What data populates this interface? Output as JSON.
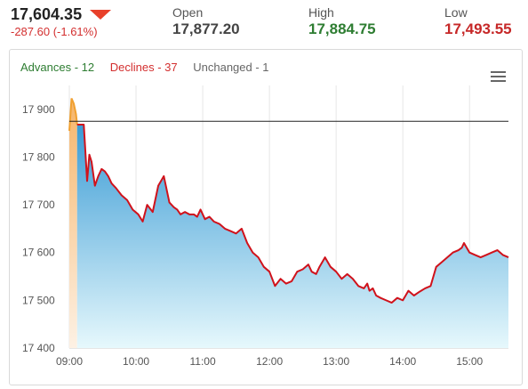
{
  "quote": {
    "last": "17,604.35",
    "change": "-287.60 (-1.61%)",
    "open_label": "Open",
    "open_value": "17,877.20",
    "high_label": "High",
    "high_value": "17,884.75",
    "low_label": "Low",
    "low_value": "17,493.55"
  },
  "breadth": {
    "advances": "Advances - 12",
    "declines": "Declines - 37",
    "unchanged": "Unchanged - 1"
  },
  "colors": {
    "down": "#d32f2f",
    "up_green": "#2e7d32",
    "line": "#d0121b",
    "preopen_line": "#f0a030",
    "fill_top": "#3a9bd5",
    "fill_bottom": "#e6f8fc",
    "prev_close_line": "#222222"
  },
  "chart_data": {
    "type": "area",
    "title": "",
    "xlabel": "",
    "ylabel": "",
    "ylim": [
      17400,
      17950
    ],
    "xlim": [
      "09:00",
      "15:35"
    ],
    "y_ticks": [
      17400,
      17500,
      17600,
      17700,
      17800,
      17900
    ],
    "y_tick_labels": [
      "17 400",
      "17 500",
      "17 600",
      "17 700",
      "17 800",
      "17 900"
    ],
    "x_ticks": [
      "09:00",
      "10:00",
      "11:00",
      "12:00",
      "13:00",
      "14:00",
      "15:00"
    ],
    "reference_line": 17875,
    "legend": "none",
    "grid": "vertical",
    "preopen_series": {
      "x": [
        "09:00",
        "09:02",
        "09:04",
        "09:06",
        "09:07"
      ],
      "values": [
        17855,
        17923,
        17912,
        17890,
        17868
      ]
    },
    "series": [
      {
        "x": [
          "09:07",
          "09:13",
          "09:16",
          "09:18",
          "09:20",
          "09:23",
          "09:26",
          "09:29",
          "09:32",
          "09:35",
          "09:38",
          "09:42",
          "09:47",
          "09:52",
          "09:57",
          "10:02",
          "10:06",
          "10:10",
          "10:15",
          "10:20",
          "10:25",
          "10:30",
          "10:34",
          "10:37",
          "10:40",
          "10:44",
          "10:48",
          "10:52",
          "10:55",
          "10:58",
          "11:02",
          "11:06",
          "11:10",
          "11:15",
          "11:20",
          "11:25",
          "11:30",
          "11:35",
          "11:40",
          "11:45",
          "11:50",
          "11:55",
          "12:00",
          "12:05",
          "12:10",
          "12:15",
          "12:20",
          "12:25",
          "12:30",
          "12:35",
          "12:38",
          "12:42",
          "12:45",
          "12:50",
          "12:55",
          "13:00",
          "13:05",
          "13:10",
          "13:15",
          "13:20",
          "13:25",
          "13:28",
          "13:30",
          "13:33",
          "13:36",
          "13:40",
          "13:45",
          "13:50",
          "13:55",
          "14:00",
          "14:05",
          "14:10",
          "14:15",
          "14:20",
          "14:25",
          "14:30",
          "14:35",
          "14:40",
          "14:45",
          "14:50",
          "14:53",
          "14:55",
          "15:00",
          "15:05",
          "15:10",
          "15:15",
          "15:20",
          "15:25",
          "15:30",
          "15:35"
        ],
        "values": [
          17868,
          17868,
          17750,
          17805,
          17790,
          17740,
          17760,
          17775,
          17770,
          17760,
          17745,
          17735,
          17720,
          17710,
          17690,
          17680,
          17665,
          17700,
          17685,
          17740,
          17760,
          17705,
          17695,
          17690,
          17680,
          17685,
          17680,
          17680,
          17675,
          17690,
          17670,
          17675,
          17665,
          17660,
          17650,
          17645,
          17640,
          17650,
          17620,
          17600,
          17590,
          17570,
          17560,
          17530,
          17545,
          17535,
          17540,
          17560,
          17565,
          17575,
          17560,
          17555,
          17570,
          17590,
          17570,
          17560,
          17545,
          17555,
          17545,
          17530,
          17525,
          17535,
          17520,
          17525,
          17510,
          17505,
          17500,
          17495,
          17505,
          17500,
          17520,
          17510,
          17518,
          17525,
          17530,
          17570,
          17580,
          17590,
          17600,
          17605,
          17610,
          17620,
          17600,
          17595,
          17590,
          17595,
          17600,
          17605,
          17595,
          17590
        ]
      }
    ]
  }
}
